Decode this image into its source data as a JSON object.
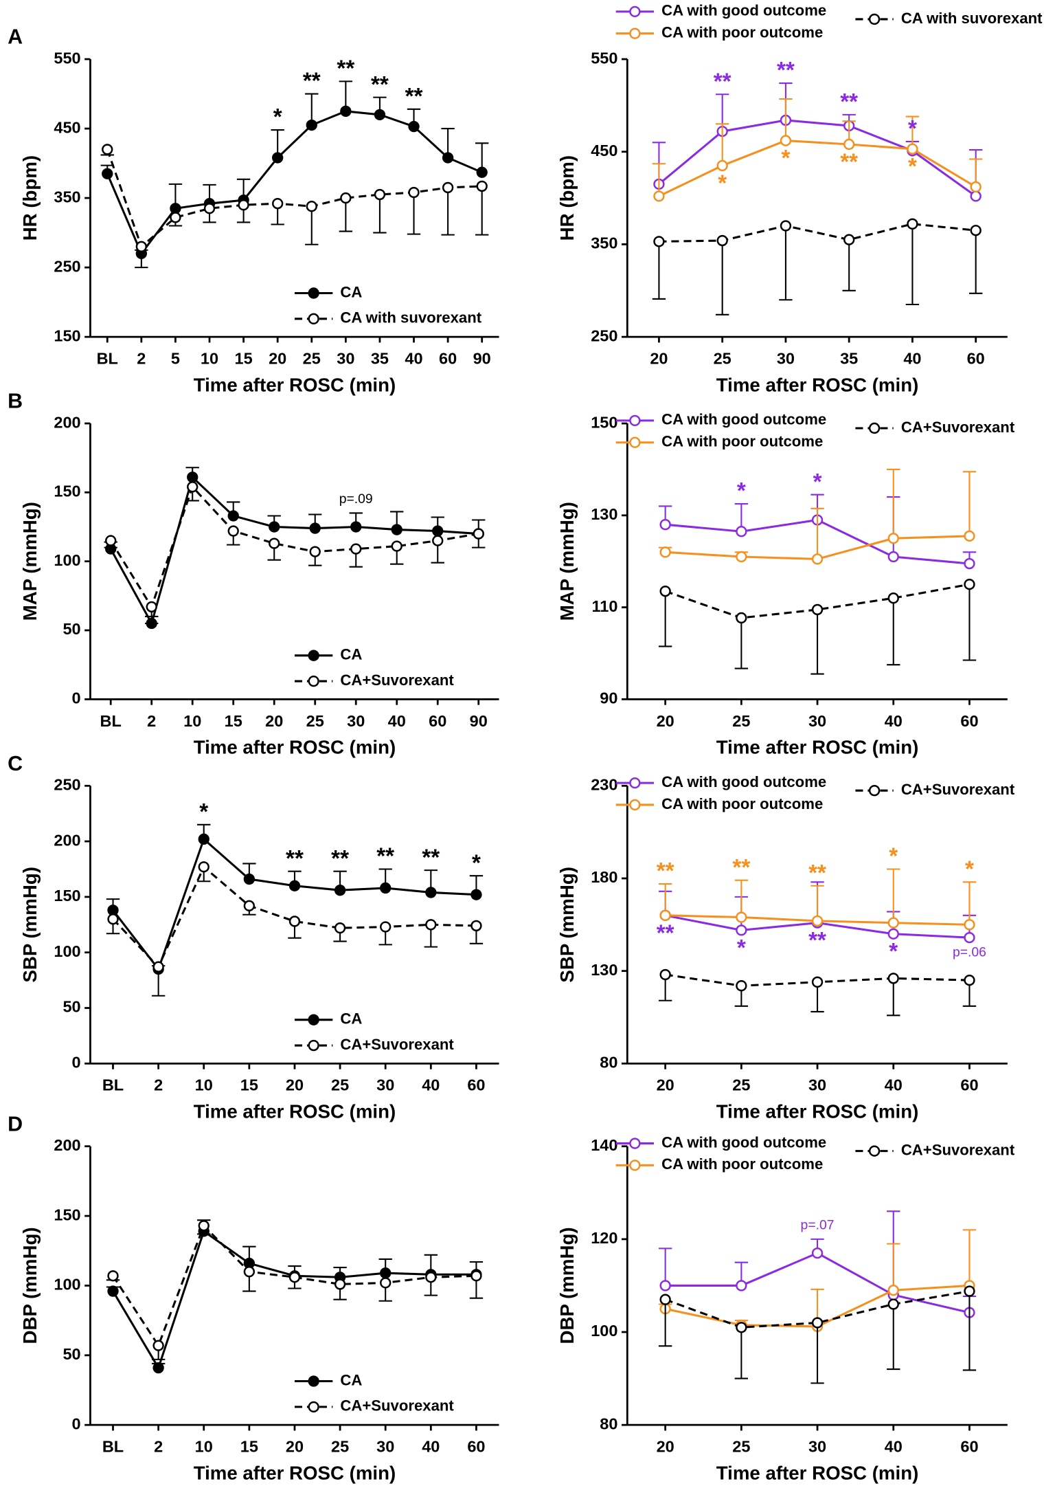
{
  "chart_data": [
    {
      "type": "line",
      "panel": "A",
      "ylabel": "HR (bpm)",
      "xlabel": "Time after ROSC (min)",
      "legend": "lower right",
      "categories": [
        "BL",
        "2",
        "5",
        "10",
        "15",
        "20",
        "25",
        "30",
        "35",
        "40",
        "60",
        "90"
      ],
      "ylim": [
        150,
        550
      ],
      "yticks": [
        150,
        250,
        350,
        450,
        550
      ],
      "series": [
        {
          "name": "CA",
          "color": "#000000",
          "marker": "filled",
          "dashed": false,
          "error_direction": "up",
          "values": [
            385,
            270,
            335,
            342,
            347,
            408,
            455,
            475,
            470,
            453,
            408,
            387
          ],
          "errors": [
            12,
            5,
            35,
            27,
            30,
            40,
            45,
            43,
            25,
            25,
            42,
            42
          ]
        },
        {
          "name": "CA with suvorexant",
          "color": "#000000",
          "marker": "open",
          "dashed": true,
          "error_direction": "down",
          "values": [
            420,
            280,
            322,
            335,
            340,
            342,
            338,
            350,
            355,
            358,
            365,
            367
          ],
          "errors": [
            8,
            30,
            12,
            20,
            25,
            30,
            55,
            48,
            55,
            60,
            68,
            70
          ]
        }
      ],
      "annotations": [
        {
          "text": "*",
          "category": "20",
          "series": 0,
          "side": "above"
        },
        {
          "text": "**",
          "category": "25",
          "series": 0,
          "side": "above"
        },
        {
          "text": "**",
          "category": "30",
          "series": 0,
          "side": "above"
        },
        {
          "text": "**",
          "category": "35",
          "series": 0,
          "side": "above"
        },
        {
          "text": "**",
          "category": "40",
          "series": 0,
          "side": "above"
        }
      ]
    },
    {
      "type": "line",
      "ylabel": "HR (bpm)",
      "xlabel": "Time after ROSC (min)",
      "legend": "top",
      "categories": [
        "20",
        "25",
        "30",
        "35",
        "40",
        "60"
      ],
      "ylim": [
        250,
        550
      ],
      "yticks": [
        250,
        350,
        450,
        550
      ],
      "series": [
        {
          "name": "CA with good outcome",
          "color": "#8a2be2",
          "marker": "open",
          "dashed": false,
          "error_direction": "up",
          "values": [
            415,
            472,
            484,
            478,
            451,
            402
          ],
          "errors": [
            45,
            40,
            40,
            12,
            10,
            50
          ]
        },
        {
          "name": "CA with poor outcome",
          "color": "#f5901e",
          "marker": "open",
          "dashed": false,
          "error_direction": "up",
          "values": [
            402,
            435,
            462,
            458,
            453,
            412
          ],
          "errors": [
            35,
            45,
            45,
            25,
            35,
            30
          ]
        },
        {
          "name": "CA with suvorexant",
          "color": "#000000",
          "marker": "open",
          "dashed": true,
          "error_direction": "down",
          "values": [
            353,
            354,
            370,
            355,
            372,
            365
          ],
          "errors": [
            62,
            80,
            80,
            55,
            87,
            68
          ]
        }
      ],
      "annotations": [
        {
          "text": "**",
          "category": "25",
          "series": 0,
          "side": "above"
        },
        {
          "text": "**",
          "category": "30",
          "series": 0,
          "side": "above"
        },
        {
          "text": "**",
          "category": "35",
          "series": 0,
          "side": "above"
        },
        {
          "text": "*",
          "category": "40",
          "series": 0,
          "side": "above"
        },
        {
          "text": "*",
          "category": "25",
          "series": 1,
          "side": "below"
        },
        {
          "text": "*",
          "category": "30",
          "series": 1,
          "side": "below"
        },
        {
          "text": "**",
          "category": "35",
          "series": 1,
          "side": "below"
        },
        {
          "text": "*",
          "category": "40",
          "series": 1,
          "side": "below"
        }
      ]
    },
    {
      "type": "line",
      "panel": "B",
      "ylabel": "MAP (mmHg)",
      "xlabel": "Time after ROSC (min)",
      "legend": "lower right",
      "categories": [
        "BL",
        "2",
        "10",
        "15",
        "20",
        "25",
        "30",
        "40",
        "60",
        "90"
      ],
      "ylim": [
        0,
        200
      ],
      "yticks": [
        0,
        50,
        100,
        150,
        200
      ],
      "series": [
        {
          "name": "CA",
          "color": "#000000",
          "marker": "filled",
          "dashed": false,
          "error_direction": "up",
          "values": [
            109,
            55,
            161,
            133,
            125,
            124,
            125,
            123,
            122,
            120
          ],
          "errors": [
            5,
            5,
            7,
            10,
            8,
            10,
            10,
            13,
            10,
            10
          ]
        },
        {
          "name": "CA+Suvorexant",
          "color": "#000000",
          "marker": "open",
          "dashed": true,
          "error_direction": "down",
          "values": [
            115,
            67,
            154,
            122,
            113,
            107,
            109,
            111,
            115,
            120
          ],
          "errors": [
            5,
            12,
            10,
            10,
            12,
            10,
            13,
            13,
            16,
            10
          ]
        }
      ],
      "annotations": [
        {
          "text": "p=.09",
          "category": "30",
          "series": 0,
          "side": "above"
        }
      ]
    },
    {
      "type": "line",
      "ylabel": "MAP (mmHg)",
      "xlabel": "Time after ROSC (min)",
      "legend": "top",
      "categories": [
        "20",
        "25",
        "30",
        "40",
        "60"
      ],
      "ylim": [
        90,
        150
      ],
      "yticks": [
        90,
        110,
        130,
        150
      ],
      "series": [
        {
          "name": "CA with good outcome",
          "color": "#8a2be2",
          "marker": "open",
          "dashed": false,
          "error_direction": "up",
          "values": [
            128,
            126.5,
            129,
            121,
            119.5
          ],
          "errors": [
            4,
            6,
            5.5,
            13,
            2.5
          ]
        },
        {
          "name": "CA with poor outcome",
          "color": "#f5901e",
          "marker": "open",
          "dashed": false,
          "error_direction": "up",
          "values": [
            122,
            121,
            120.5,
            125,
            125.5
          ],
          "errors": [
            1,
            1,
            11,
            15,
            14
          ]
        },
        {
          "name": "CA+Suvorexant",
          "color": "#000000",
          "marker": "open",
          "dashed": true,
          "error_direction": "down",
          "values": [
            113.5,
            107.7,
            109.5,
            112,
            115
          ],
          "errors": [
            12,
            11,
            14,
            14.5,
            16.5
          ]
        }
      ],
      "annotations": [
        {
          "text": "*",
          "category": "25",
          "series": 0,
          "side": "above"
        },
        {
          "text": "*",
          "category": "30",
          "series": 0,
          "side": "above"
        }
      ]
    },
    {
      "type": "line",
      "panel": "C",
      "ylabel": "SBP (mmHg)",
      "xlabel": "Time after ROSC (min)",
      "legend": "lower right",
      "categories": [
        "BL",
        "2",
        "10",
        "15",
        "20",
        "25",
        "30",
        "40",
        "60"
      ],
      "ylim": [
        0,
        250
      ],
      "yticks": [
        0,
        50,
        100,
        150,
        200,
        250
      ],
      "series": [
        {
          "name": "CA",
          "color": "#000000",
          "marker": "filled",
          "dashed": false,
          "error_direction": "up",
          "values": [
            138,
            85,
            202,
            166,
            160,
            156,
            158,
            154,
            152
          ],
          "errors": [
            10,
            3,
            13,
            14,
            13,
            17,
            17,
            20,
            17
          ]
        },
        {
          "name": "CA+Suvorexant",
          "color": "#000000",
          "marker": "open",
          "dashed": true,
          "error_direction": "down",
          "values": [
            130,
            87,
            177,
            142,
            128,
            122,
            123,
            125,
            124
          ],
          "errors": [
            13,
            26,
            13,
            8,
            15,
            12,
            16,
            20,
            16
          ]
        }
      ],
      "annotations": [
        {
          "text": "*",
          "category": "10",
          "series": 0,
          "side": "above"
        },
        {
          "text": "**",
          "category": "20",
          "series": 0,
          "side": "above"
        },
        {
          "text": "**",
          "category": "25",
          "series": 0,
          "side": "above"
        },
        {
          "text": "**",
          "category": "30",
          "series": 0,
          "side": "above"
        },
        {
          "text": "**",
          "category": "40",
          "series": 0,
          "side": "above"
        },
        {
          "text": "*",
          "category": "60",
          "series": 0,
          "side": "above"
        }
      ]
    },
    {
      "type": "line",
      "ylabel": "SBP (mmHg)",
      "xlabel": "Time after ROSC (min)",
      "legend": "top",
      "categories": [
        "20",
        "25",
        "30",
        "40",
        "60"
      ],
      "ylim": [
        80,
        230
      ],
      "yticks": [
        80,
        130,
        180,
        230
      ],
      "series": [
        {
          "name": "CA with good outcome",
          "color": "#8a2be2",
          "marker": "open",
          "dashed": false,
          "error_direction": "up",
          "values": [
            160,
            152,
            156,
            150,
            148
          ],
          "errors": [
            13,
            18,
            22,
            12,
            12
          ]
        },
        {
          "name": "CA with poor outcome",
          "color": "#f5901e",
          "marker": "open",
          "dashed": false,
          "error_direction": "up",
          "values": [
            160,
            159,
            157,
            156,
            155
          ],
          "errors": [
            17,
            20,
            19,
            29,
            23
          ]
        },
        {
          "name": "CA+Suvorexant",
          "color": "#000000",
          "marker": "open",
          "dashed": true,
          "error_direction": "down",
          "values": [
            128,
            122,
            124,
            126,
            125
          ],
          "errors": [
            14,
            11,
            16,
            20,
            14
          ]
        }
      ],
      "annotations": [
        {
          "text": "**",
          "category": "20",
          "series": 1,
          "side": "above"
        },
        {
          "text": "**",
          "category": "25",
          "series": 1,
          "side": "above"
        },
        {
          "text": "**",
          "category": "30",
          "series": 1,
          "side": "above"
        },
        {
          "text": "*",
          "category": "40",
          "series": 1,
          "side": "above"
        },
        {
          "text": "*",
          "category": "60",
          "series": 1,
          "side": "above"
        },
        {
          "text": "**",
          "category": "20",
          "series": 0,
          "side": "below"
        },
        {
          "text": "*",
          "category": "25",
          "series": 0,
          "side": "below"
        },
        {
          "text": "**",
          "category": "30",
          "series": 0,
          "side": "below"
        },
        {
          "text": "*",
          "category": "40",
          "series": 0,
          "side": "below"
        },
        {
          "text": "p=.06",
          "category": "60",
          "series": 0,
          "side": "below"
        }
      ]
    },
    {
      "type": "line",
      "panel": "D",
      "ylabel": "DBP (mmHg)",
      "xlabel": "Time after ROSC (min)",
      "legend": "lower right",
      "categories": [
        "BL",
        "2",
        "10",
        "15",
        "20",
        "25",
        "30",
        "40",
        "60"
      ],
      "ylim": [
        0,
        200
      ],
      "yticks": [
        0,
        50,
        100,
        150,
        200
      ],
      "series": [
        {
          "name": "CA",
          "color": "#000000",
          "marker": "filled",
          "dashed": false,
          "error_direction": "up",
          "values": [
            96,
            41,
            139,
            116,
            107,
            106,
            109,
            108,
            108
          ],
          "errors": [
            3,
            3,
            8,
            12,
            7,
            7,
            10,
            14,
            9
          ]
        },
        {
          "name": "CA+Suvorexant",
          "color": "#000000",
          "marker": "open",
          "dashed": true,
          "error_direction": "down",
          "values": [
            107,
            57,
            143,
            110,
            106,
            101,
            102,
            106,
            107
          ],
          "errors": [
            3,
            10,
            6,
            14,
            8,
            11,
            13,
            13,
            16
          ]
        }
      ],
      "annotations": []
    },
    {
      "type": "line",
      "ylabel": "DBP (mmHg)",
      "xlabel": "Time after ROSC (min)",
      "legend": "top",
      "categories": [
        "20",
        "25",
        "30",
        "40",
        "60"
      ],
      "ylim": [
        80,
        140
      ],
      "yticks": [
        80,
        100,
        120,
        140
      ],
      "series": [
        {
          "name": "CA with good outcome",
          "color": "#8a2be2",
          "marker": "open",
          "dashed": false,
          "error_direction": "up",
          "values": [
            110,
            110,
            117,
            108,
            104.2
          ],
          "errors": [
            8,
            5,
            3,
            18,
            3.5
          ]
        },
        {
          "name": "CA with poor outcome",
          "color": "#f5901e",
          "marker": "open",
          "dashed": false,
          "error_direction": "up",
          "values": [
            105,
            101.5,
            101.2,
            109,
            110
          ],
          "errors": [
            1,
            1,
            8,
            10,
            12
          ]
        },
        {
          "name": "CA+Suvorexant",
          "color": "#000000",
          "marker": "open",
          "dashed": true,
          "error_direction": "down",
          "values": [
            107,
            101,
            102,
            106,
            108.8
          ],
          "errors": [
            10,
            11,
            13,
            14,
            17
          ]
        }
      ],
      "annotations": [
        {
          "text": "p=.07",
          "category": "30",
          "series": 0,
          "side": "above"
        }
      ]
    }
  ]
}
